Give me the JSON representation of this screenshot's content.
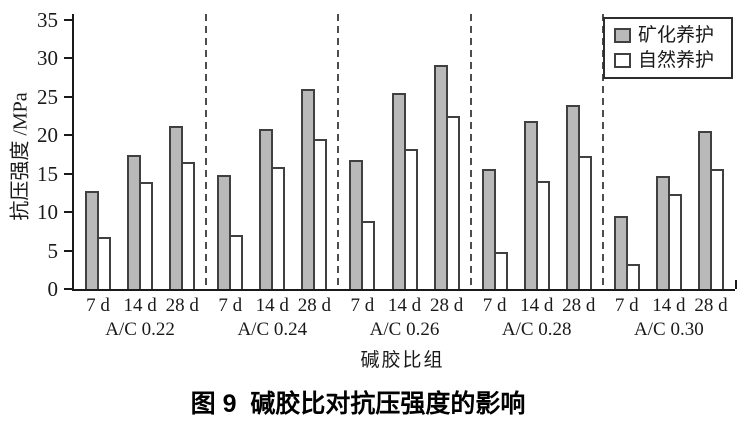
{
  "figure": {
    "caption": "图 9  碱胶比对抗压强度的影响"
  },
  "colors": {
    "mineralized_bar_fill": "#b9b9b9",
    "natural_bar_fill": "#ffffff",
    "bar_border": "#404040",
    "axis": "#1a1a1a",
    "separator_dash": "#4d4d4d"
  },
  "chart_data": {
    "type": "bar",
    "title": "",
    "xlabel": "碱胶比组",
    "ylabel": "抗压强度 /MPa",
    "ylim": [
      0,
      35
    ],
    "ytick_step": 5,
    "grid": false,
    "legend_position": "top-right",
    "group_separators": "dashed vertical lines between A/C groups",
    "groups": [
      "A/C 0.22",
      "A/C 0.24",
      "A/C 0.26",
      "A/C 0.28",
      "A/C 0.30"
    ],
    "subcategories": [
      "7 d",
      "14 d",
      "28 d"
    ],
    "series": [
      {
        "name": "矿化养护",
        "fill": "#b9b9b9",
        "values": [
          [
            12.8,
            17.5,
            21.2
          ],
          [
            14.8,
            20.8,
            26.0
          ],
          [
            16.8,
            25.5,
            29.2
          ],
          [
            15.6,
            21.8,
            24.0
          ],
          [
            9.5,
            14.7,
            20.5
          ]
        ]
      },
      {
        "name": "自然养护",
        "fill": "#ffffff",
        "values": [
          [
            6.8,
            13.9,
            16.5
          ],
          [
            7.0,
            15.9,
            19.5
          ],
          [
            8.8,
            18.2,
            22.5
          ],
          [
            4.8,
            14.0,
            17.3
          ],
          [
            3.3,
            12.3,
            15.6
          ]
        ]
      }
    ]
  }
}
